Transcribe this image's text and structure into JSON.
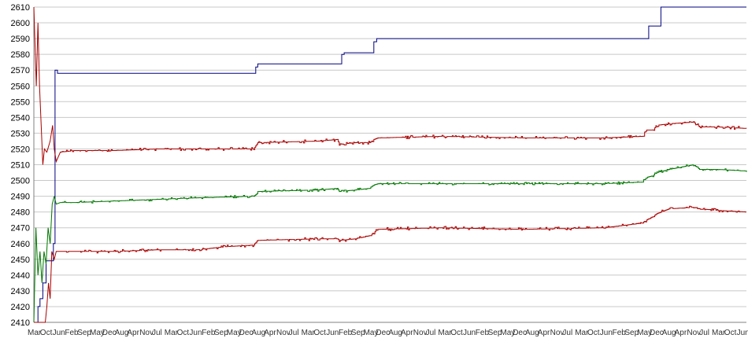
{
  "chart_data": {
    "type": "line",
    "title": "",
    "xlabel": "",
    "ylabel": "",
    "ylim": [
      2410,
      2610
    ],
    "y_ticks": [
      2410,
      2420,
      2430,
      2440,
      2450,
      2460,
      2470,
      2480,
      2490,
      2500,
      2510,
      2520,
      2530,
      2540,
      2550,
      2560,
      2570,
      2580,
      2590,
      2600,
      2610
    ],
    "grid": "horizontal",
    "x_tick_labels": "overlapping dense labels, illegible",
    "colors": {
      "blue": "#000080",
      "red": "#aa0000",
      "green": "#007700",
      "grid": "#c8c8c8"
    },
    "series": [
      {
        "color": "blue",
        "step": true,
        "points": [
          [
            0.0,
            2410
          ],
          [
            1.0,
            2420
          ],
          [
            1.5,
            2425
          ],
          [
            2.2,
            2435
          ],
          [
            3.0,
            2449
          ],
          [
            4.5,
            2449
          ],
          [
            4.8,
            2460
          ],
          [
            5.2,
            2570
          ],
          [
            5.8,
            2568
          ],
          [
            54.0,
            2568
          ],
          [
            54.5,
            2572
          ],
          [
            55.0,
            2574
          ],
          [
            75.0,
            2574
          ],
          [
            75.6,
            2580
          ],
          [
            76.2,
            2581
          ],
          [
            82.5,
            2581
          ],
          [
            83.5,
            2588
          ],
          [
            84.2,
            2590
          ],
          [
            150.0,
            2590
          ],
          [
            151.0,
            2598
          ],
          [
            153.0,
            2598
          ],
          [
            154.0,
            2610
          ],
          [
            175.0,
            2610
          ]
        ]
      },
      {
        "color": "red",
        "noise": 1.0,
        "points": [
          [
            0.0,
            2610
          ],
          [
            0.6,
            2560
          ],
          [
            1.0,
            2600
          ],
          [
            1.4,
            2560
          ],
          [
            1.8,
            2535
          ],
          [
            2.2,
            2510
          ],
          [
            2.6,
            2520
          ],
          [
            3.2,
            2518
          ],
          [
            4.0,
            2525
          ],
          [
            4.6,
            2535
          ],
          [
            5.0,
            2520
          ],
          [
            5.5,
            2512
          ],
          [
            6.5,
            2518
          ],
          [
            10.0,
            2519
          ],
          [
            20.0,
            2519
          ],
          [
            30.0,
            2520
          ],
          [
            40.0,
            2520
          ],
          [
            54.0,
            2520
          ],
          [
            54.5,
            2522
          ],
          [
            55.0,
            2524
          ],
          [
            70.0,
            2525
          ],
          [
            74.5,
            2526
          ],
          [
            75.0,
            2523
          ],
          [
            79.0,
            2524
          ],
          [
            82.5,
            2524
          ],
          [
            83.5,
            2526
          ],
          [
            84.5,
            2527
          ],
          [
            100.0,
            2528
          ],
          [
            120.0,
            2527
          ],
          [
            140.0,
            2527
          ],
          [
            149.5,
            2528
          ],
          [
            150.5,
            2532
          ],
          [
            152.0,
            2532
          ],
          [
            153.0,
            2535
          ],
          [
            156.0,
            2536
          ],
          [
            162.0,
            2537
          ],
          [
            163.5,
            2534
          ],
          [
            168.0,
            2534
          ],
          [
            175.0,
            2533
          ]
        ]
      },
      {
        "color": "green",
        "noise": 0.8,
        "points": [
          [
            0.0,
            2410
          ],
          [
            0.5,
            2470
          ],
          [
            1.0,
            2440
          ],
          [
            1.5,
            2455
          ],
          [
            2.0,
            2435
          ],
          [
            2.5,
            2455
          ],
          [
            3.0,
            2447
          ],
          [
            3.5,
            2470
          ],
          [
            4.0,
            2460
          ],
          [
            4.5,
            2485
          ],
          [
            5.0,
            2490
          ],
          [
            5.5,
            2485
          ],
          [
            6.5,
            2486
          ],
          [
            10.0,
            2486
          ],
          [
            20.0,
            2487
          ],
          [
            30.0,
            2488
          ],
          [
            40.0,
            2489
          ],
          [
            54.0,
            2490
          ],
          [
            54.5,
            2491
          ],
          [
            55.0,
            2493
          ],
          [
            70.0,
            2494
          ],
          [
            74.5,
            2495
          ],
          [
            75.0,
            2493
          ],
          [
            79.0,
            2494
          ],
          [
            82.5,
            2495
          ],
          [
            83.5,
            2497
          ],
          [
            84.5,
            2498
          ],
          [
            100.0,
            2498
          ],
          [
            120.0,
            2498
          ],
          [
            140.0,
            2498
          ],
          [
            149.5,
            2499
          ],
          [
            150.5,
            2502
          ],
          [
            152.0,
            2503
          ],
          [
            153.0,
            2505
          ],
          [
            156.0,
            2507
          ],
          [
            162.0,
            2510
          ],
          [
            163.5,
            2507
          ],
          [
            168.0,
            2507
          ],
          [
            175.0,
            2506
          ]
        ]
      },
      {
        "color": "red",
        "noise": 1.0,
        "points": [
          [
            0.0,
            2410
          ],
          [
            2.8,
            2410
          ],
          [
            3.2,
            2420
          ],
          [
            3.6,
            2435
          ],
          [
            4.0,
            2425
          ],
          [
            4.4,
            2455
          ],
          [
            5.0,
            2450
          ],
          [
            5.5,
            2455
          ],
          [
            6.5,
            2455
          ],
          [
            10.0,
            2455
          ],
          [
            20.0,
            2455
          ],
          [
            30.0,
            2456
          ],
          [
            40.0,
            2456
          ],
          [
            47.0,
            2458
          ],
          [
            54.0,
            2459
          ],
          [
            54.5,
            2461
          ],
          [
            55.0,
            2462
          ],
          [
            70.0,
            2463
          ],
          [
            74.5,
            2463
          ],
          [
            75.0,
            2462
          ],
          [
            79.0,
            2463
          ],
          [
            82.5,
            2465
          ],
          [
            83.5,
            2467
          ],
          [
            84.5,
            2469
          ],
          [
            100.0,
            2470
          ],
          [
            120.0,
            2469
          ],
          [
            140.0,
            2470
          ],
          [
            149.5,
            2473
          ],
          [
            150.5,
            2475
          ],
          [
            152.0,
            2477
          ],
          [
            153.0,
            2479
          ],
          [
            156.0,
            2482
          ],
          [
            162.0,
            2483
          ],
          [
            163.5,
            2482
          ],
          [
            168.0,
            2481
          ],
          [
            175.0,
            2480
          ]
        ]
      }
    ]
  }
}
